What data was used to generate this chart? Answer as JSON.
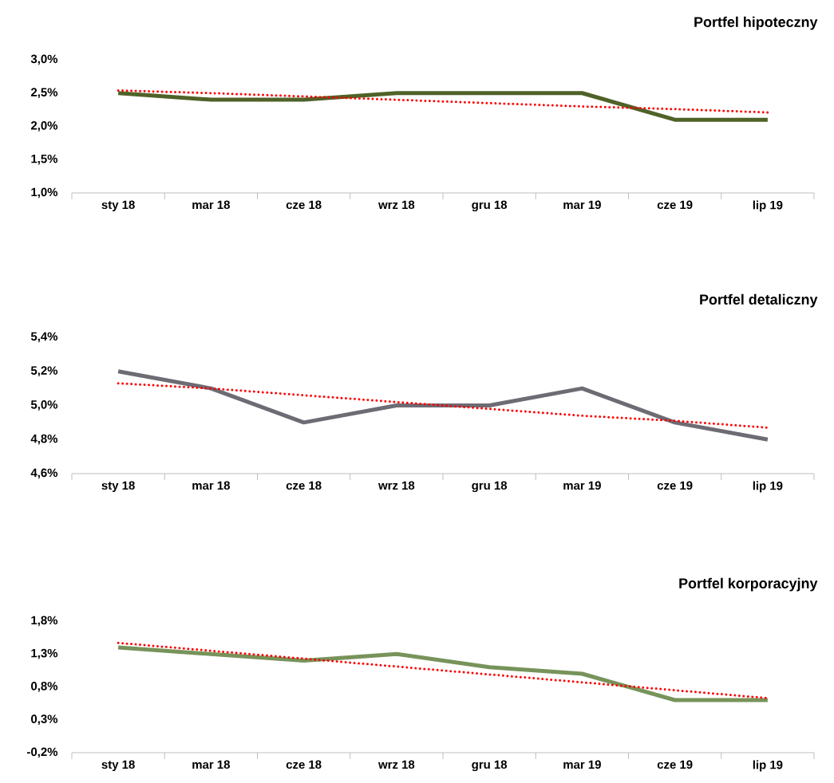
{
  "chart_data": [
    {
      "type": "line",
      "title": "Portfel hipoteczny",
      "categories": [
        "sty 18",
        "mar 18",
        "cze 18",
        "wrz 18",
        "gru 18",
        "mar 19",
        "cze 19",
        "lip 19"
      ],
      "series": [
        {
          "color": "#4f6228",
          "line_style": "solid",
          "values": [
            2.5,
            2.4,
            2.4,
            2.5,
            2.5,
            2.5,
            2.1,
            2.1
          ]
        },
        {
          "type": "line",
          "color": "#ff0000",
          "line_style": "dotted",
          "values": [
            2.54,
            2.5,
            2.45,
            2.4,
            2.35,
            2.3,
            2.26,
            2.21
          ]
        }
      ],
      "ylim": [
        1.0,
        3.0
      ],
      "yticks": [
        {
          "value": 1.0,
          "label": "1,0%"
        },
        {
          "value": 1.5,
          "label": "1,5%"
        },
        {
          "value": 2.0,
          "label": "2,0%"
        },
        {
          "value": 2.5,
          "label": "2,5%"
        },
        {
          "value": 3.0,
          "label": "3,0%"
        }
      ]
    },
    {
      "type": "line",
      "title": "Portfel detaliczny",
      "categories": [
        "sty 18",
        "mar 18",
        "cze 18",
        "wrz 18",
        "gru 18",
        "mar 19",
        "cze 19",
        "lip 19"
      ],
      "series": [
        {
          "color": "#6d6b73",
          "line_style": "solid",
          "values": [
            5.2,
            5.1,
            4.9,
            5.0,
            5.0,
            5.1,
            4.9,
            4.8
          ]
        },
        {
          "type": "line",
          "color": "#ff0000",
          "line_style": "dotted",
          "values": [
            5.13,
            5.1,
            5.06,
            5.02,
            4.98,
            4.94,
            4.91,
            4.87
          ]
        }
      ],
      "ylim": [
        4.6,
        5.4
      ],
      "yticks": [
        {
          "value": 4.6,
          "label": "4,6%"
        },
        {
          "value": 4.8,
          "label": "4,8%"
        },
        {
          "value": 5.0,
          "label": "5,0%"
        },
        {
          "value": 5.2,
          "label": "5,2%"
        },
        {
          "value": 5.4,
          "label": "5,4%"
        }
      ]
    },
    {
      "type": "line",
      "title": "Portfel korporacyjny",
      "categories": [
        "sty 18",
        "mar 18",
        "cze 18",
        "wrz 18",
        "gru 18",
        "mar 19",
        "cze 19",
        "lip 19"
      ],
      "series": [
        {
          "color": "#77935a",
          "line_style": "solid",
          "values": [
            1.4,
            1.3,
            1.2,
            1.3,
            1.1,
            1.0,
            0.6,
            0.6
          ]
        },
        {
          "type": "line",
          "color": "#ff0000",
          "line_style": "dotted",
          "values": [
            1.47,
            1.35,
            1.23,
            1.11,
            0.99,
            0.87,
            0.75,
            0.63
          ]
        }
      ],
      "ylim": [
        -0.2,
        1.8
      ],
      "yticks": [
        {
          "value": -0.2,
          "label": "-0,2%"
        },
        {
          "value": 0.3,
          "label": "0,3%"
        },
        {
          "value": 0.8,
          "label": "0,8%"
        },
        {
          "value": 1.3,
          "label": "1,3%"
        },
        {
          "value": 1.8,
          "label": "1,8%"
        }
      ]
    }
  ]
}
